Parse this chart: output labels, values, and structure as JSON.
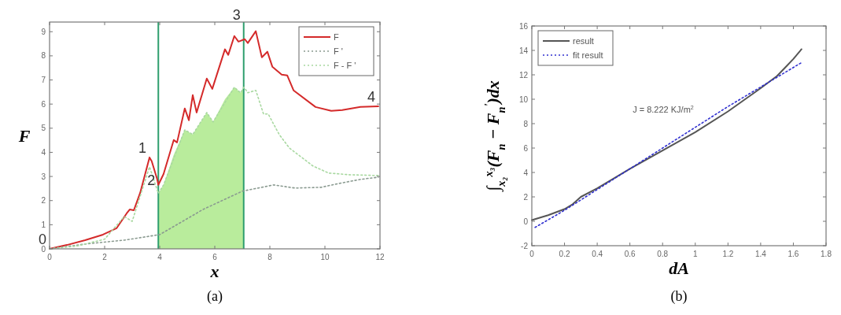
{
  "chart_data": [
    {
      "type": "line",
      "title": "(a)",
      "xlabel": "x",
      "ylabel": "F",
      "xlim": [
        0,
        12
      ],
      "ylim": [
        0,
        9.4
      ],
      "xticks": [
        0,
        2,
        4,
        6,
        8,
        10,
        12
      ],
      "yticks": [
        0,
        1,
        2,
        3,
        4,
        5,
        6,
        7,
        8,
        9
      ],
      "grid": false,
      "legend": "top right",
      "ref_lines": [
        {
          "axis": "x",
          "value": 3.95,
          "color": "#2e9e6e"
        },
        {
          "axis": "x",
          "value": 7.05,
          "color": "#2e9e6e"
        }
      ],
      "annotations": [
        {
          "text": "0",
          "x": 0,
          "y": 0
        },
        {
          "text": "1",
          "x": 3.63,
          "y": 3.79
        },
        {
          "text": "2",
          "x": 3.95,
          "y": 2.45
        },
        {
          "text": "3",
          "x": 7.05,
          "y": 9.3
        },
        {
          "text": "4",
          "x": 11.94,
          "y": 5.91
        }
      ],
      "series": [
        {
          "type": "area",
          "color": "#b9ec9c",
          "x": [
            3.95,
            4.14,
            4.51,
            4.91,
            5.2,
            5.71,
            5.94,
            6.37,
            6.71,
            6.94,
            7.05
          ],
          "values": [
            2.3,
            2.65,
            3.9,
            4.93,
            4.74,
            5.65,
            5.26,
            6.2,
            6.7,
            6.47,
            6.7
          ]
        },
        {
          "name": "F",
          "color": "#d42a2a",
          "line_style": "solid",
          "x": [
            0,
            0.63,
            1.29,
            1.94,
            2.43,
            2.8,
            2.91,
            3.06,
            3.29,
            3.63,
            3.71,
            3.91,
            3.95,
            4.14,
            4.51,
            4.63,
            4.91,
            5.06,
            5.2,
            5.34,
            5.71,
            5.91,
            6.37,
            6.49,
            6.71,
            6.86,
            7.09,
            7.2,
            7.49,
            7.71,
            7.91,
            8.09,
            8.43,
            8.63,
            8.86,
            9.66,
            10.23,
            10.63,
            11.29,
            11.94
          ],
          "values": [
            0,
            0.16,
            0.36,
            0.59,
            0.85,
            1.47,
            1.63,
            1.6,
            2.32,
            3.79,
            3.63,
            2.88,
            2.65,
            3.1,
            4.51,
            4.41,
            5.82,
            5.33,
            6.37,
            5.65,
            7.06,
            6.63,
            8.27,
            8.04,
            8.82,
            8.59,
            8.69,
            8.53,
            9.02,
            7.94,
            8.17,
            7.55,
            7.22,
            7.19,
            6.57,
            5.88,
            5.72,
            5.75,
            5.88,
            5.91
          ]
        },
        {
          "name": "F '",
          "color": "#8a9a90",
          "line_style": "dotted",
          "x": [
            0,
            1.29,
            2.71,
            4.0,
            5.57,
            7.0,
            8.14,
            8.91,
            9.86,
            10.51,
            11.29,
            11.94
          ],
          "values": [
            0,
            0.2,
            0.36,
            0.59,
            1.63,
            2.39,
            2.65,
            2.52,
            2.55,
            2.71,
            2.88,
            2.97
          ]
        },
        {
          "name": "F - F '",
          "color": "#a8d8a0",
          "line_style": "dotted",
          "x": [
            0,
            1,
            2,
            2.71,
            3.0,
            3.63,
            3.95,
            4.14,
            4.91,
            5.2,
            5.71,
            5.94,
            6.71,
            6.94,
            7.06,
            7.2,
            7.49,
            7.77,
            7.94,
            8.34,
            8.71,
            9.57,
            10.14,
            10.91,
            11.94
          ],
          "values": [
            0,
            0.12,
            0.4,
            1.34,
            1.14,
            3.4,
            2.3,
            2.65,
            4.93,
            4.74,
            5.65,
            5.26,
            6.7,
            6.47,
            6.7,
            6.47,
            6.57,
            5.59,
            5.59,
            4.74,
            4.18,
            3.43,
            3.14,
            3.07,
            3.04
          ]
        }
      ]
    },
    {
      "type": "line",
      "title": "(b)",
      "xlabel": "dA",
      "ylabel": "∫$_{x₂}$$^{x₃}$(F$_{n}$ − F$_{n}$$^{'}$)dx",
      "xlim": [
        0,
        1.8
      ],
      "ylim": [
        -2,
        16
      ],
      "xticks": [
        0,
        0.2,
        0.4,
        0.6,
        0.8,
        1,
        1.2,
        1.4,
        1.6,
        1.8
      ],
      "yticks": [
        -2,
        0,
        2,
        4,
        6,
        8,
        10,
        12,
        14,
        16
      ],
      "grid": false,
      "legend": "top left",
      "annotations": [
        "J = 8.222   KJ/m$^{2}$"
      ],
      "series": [
        {
          "name": "result",
          "color": "#555555",
          "line_style": "solid",
          "x": [
            0,
            0.1,
            0.2,
            0.25,
            0.3,
            0.4,
            0.6,
            0.8,
            1.0,
            1.2,
            1.4,
            1.5,
            1.55,
            1.6,
            1.65
          ],
          "values": [
            0.1,
            0.5,
            1.0,
            1.4,
            2.0,
            2.7,
            4.3,
            5.8,
            7.3,
            9.0,
            10.9,
            11.9,
            12.6,
            13.3,
            14.1
          ]
        },
        {
          "name": "fit result",
          "color": "#3030d0",
          "line_style": "dotted",
          "x": [
            0.02,
            0.2,
            0.4,
            0.6,
            0.8,
            1.0,
            1.2,
            1.4,
            1.65
          ],
          "values": [
            -0.5,
            0.9,
            2.6,
            4.3,
            6.0,
            7.7,
            9.4,
            11.0,
            13.0
          ]
        }
      ]
    }
  ]
}
